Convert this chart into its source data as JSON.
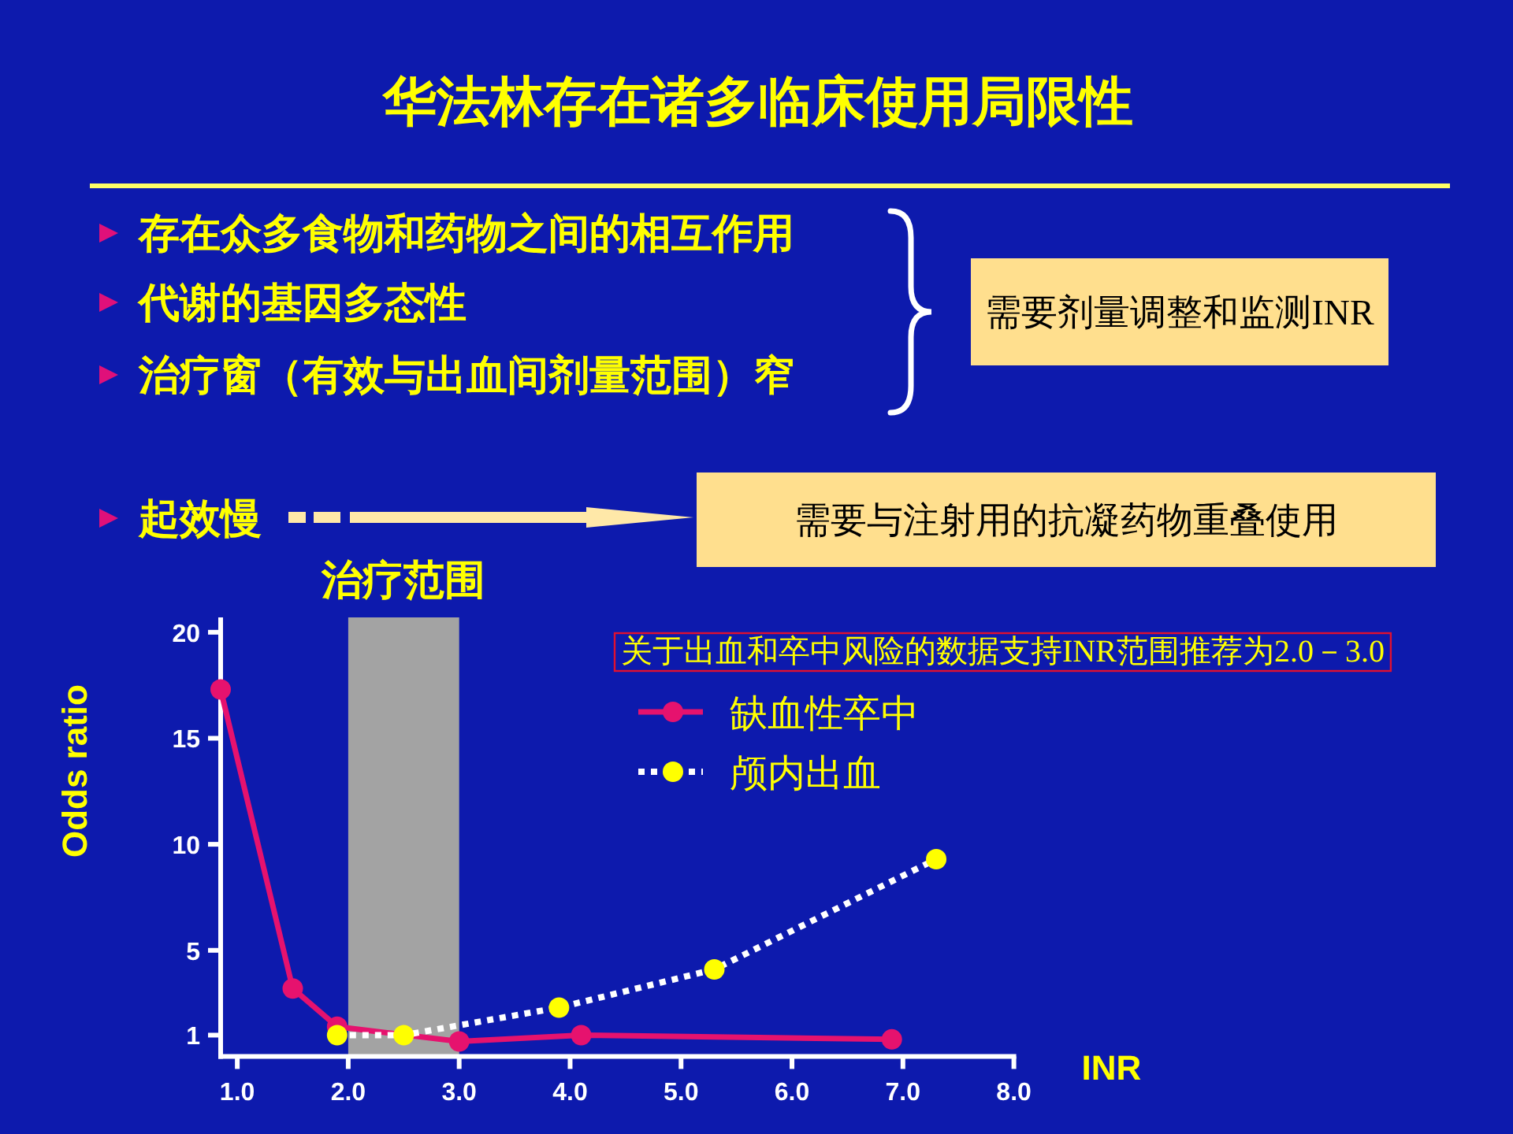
{
  "chart_data": {
    "type": "line",
    "title": "华法林存在诸多临床使用局限性",
    "xlabel": "INR",
    "ylabel": "Odds ratio",
    "annotations": [
      "存在众多食物和药物之间的相互作用",
      "代谢的基因多态性",
      "治疗窗（有效与出血间剂量范围）窄",
      "需要剂量调整和监测INR",
      "起效慢",
      "需要与注射用的抗凝药物重叠使用",
      "关于出血和卒中风险的数据支持INR范围推荐为2.0－3.0"
    ],
    "series": [
      {
        "name": "缺血性卒中",
        "color": "#e6126e",
        "line_style": "solid",
        "x": [
          0.85,
          1.5,
          1.9,
          3.0,
          4.1,
          6.9
        ],
        "values": [
          17.3,
          3.2,
          1.4,
          0.7,
          1.0,
          0.8
        ]
      },
      {
        "name": "颅内出血",
        "color": "#ffff00",
        "line_style": "dotted",
        "x": [
          1.9,
          2.5,
          3.9,
          5.3,
          7.3
        ],
        "values": [
          1.0,
          1.0,
          2.3,
          4.1,
          9.3
        ]
      }
    ],
    "xlim": [
      0.85,
      8.0
    ],
    "ylim": [
      0,
      20.7
    ],
    "xticks": [
      {
        "value": 1,
        "label": "1.0"
      },
      {
        "value": 2,
        "label": "2.0"
      },
      {
        "value": 3,
        "label": "3.0"
      },
      {
        "value": 4,
        "label": "4.0"
      },
      {
        "value": 5,
        "label": "5.0"
      },
      {
        "value": 6,
        "label": "6.0"
      },
      {
        "value": 7,
        "label": "7.0"
      },
      {
        "value": 8,
        "label": "8.0"
      }
    ],
    "yticks": [
      1,
      5,
      10,
      15,
      20
    ],
    "bands": [
      {
        "axis": "x",
        "from": 2.0,
        "to": 3.0,
        "label": "治疗范围",
        "color": "#a3a3a3"
      }
    ],
    "legend": "top",
    "marker": "circle"
  }
}
